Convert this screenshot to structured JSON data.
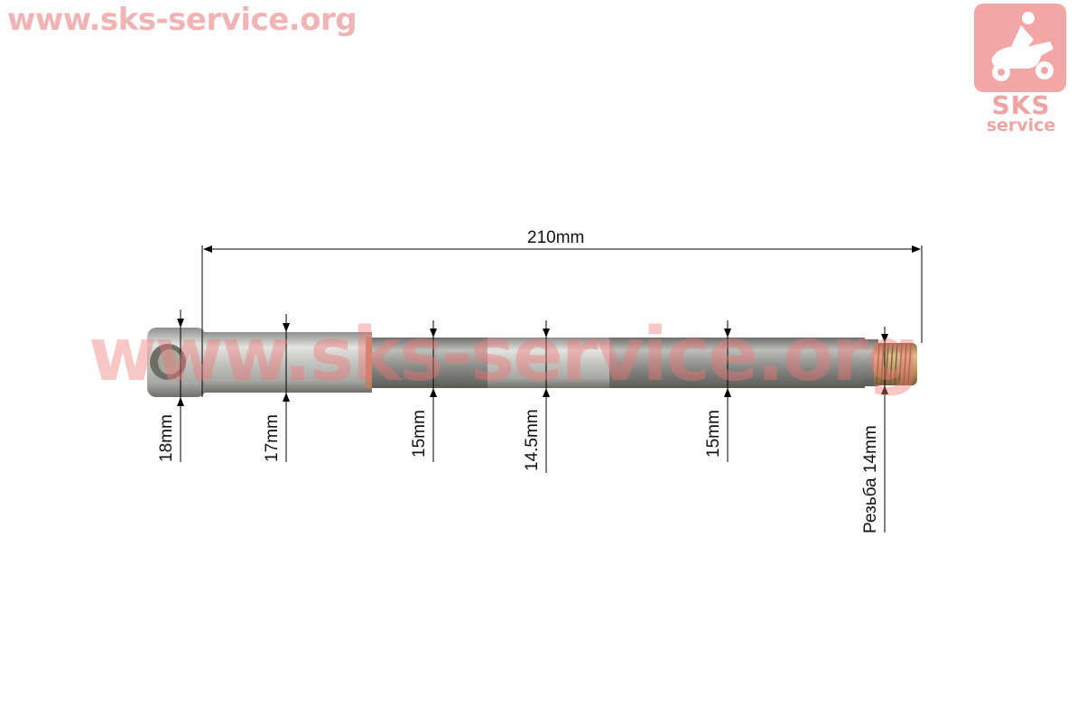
{
  "watermark": {
    "top_text": "www.sks-service.org",
    "center_text": "www.sks-service.org",
    "logo_line1": "SKS",
    "logo_line2": "service"
  },
  "dimensions": {
    "overall_length": "210mm",
    "d1": "18mm",
    "d2": "17mm",
    "d3": "15mm",
    "d4": "14.5mm",
    "d5": "15mm",
    "thread": "Резьба 14mm"
  },
  "colors": {
    "watermark": "#f0a0a0",
    "steel": "#b9b9b6",
    "thread": "#c9a571"
  }
}
